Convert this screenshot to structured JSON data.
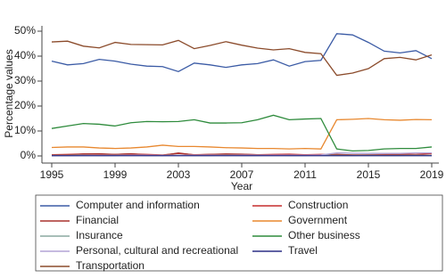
{
  "chart_data": {
    "type": "line",
    "x": [
      1995,
      1996,
      1997,
      1998,
      1999,
      2000,
      2001,
      2002,
      2003,
      2004,
      2005,
      2006,
      2007,
      2008,
      2009,
      2010,
      2011,
      2012,
      2013,
      2014,
      2015,
      2016,
      2017,
      2018,
      2019
    ],
    "xlabel": "Year",
    "ylabel": "Percentage values",
    "xlim": [
      1995,
      2019
    ],
    "xticks": [
      1995,
      1999,
      2003,
      2007,
      2011,
      2015,
      2019
    ],
    "ylim": [
      0,
      50
    ],
    "yticks": [
      {
        "value": 0,
        "label": "0%"
      },
      {
        "value": 10,
        "label": "10%"
      },
      {
        "value": 20,
        "label": "20%"
      },
      {
        "value": 30,
        "label": "30%"
      },
      {
        "value": 40,
        "label": "40%"
      },
      {
        "value": 50,
        "label": "50%"
      }
    ],
    "series": [
      {
        "name": "Computer and information",
        "color": "#3b5ba5",
        "values": [
          38,
          36.5,
          37,
          38.7,
          38,
          36.8,
          36,
          35.8,
          33.8,
          37.2,
          36.5,
          35.5,
          36.5,
          37,
          38.5,
          36,
          37.8,
          38.3,
          49,
          48.5,
          45.5,
          42,
          41.3,
          42.2,
          39
        ]
      },
      {
        "name": "Construction",
        "color": "#c62d2d",
        "values": [
          0.5,
          0.6,
          0.8,
          0.7,
          0.6,
          0.8,
          0.6,
          0.4,
          1,
          0.5,
          0.6,
          0.7,
          0.6,
          0.5,
          0.6,
          0.7,
          0.5,
          0.6,
          0.5,
          0.4,
          0.5,
          0.6,
          0.7,
          0.6,
          1
        ]
      },
      {
        "name": "Financial",
        "color": "#a8322d",
        "values": [
          0.2,
          0.3,
          0.8,
          0.9,
          0.6,
          0.9,
          0.4,
          0.2,
          1.2,
          0.4,
          0.6,
          0.8,
          0.7,
          0.5,
          0.3,
          0.4,
          0.3,
          0.3,
          0.6,
          0.4,
          0.3,
          0.3,
          0.4,
          0.3,
          0.3
        ]
      },
      {
        "name": "Government",
        "color": "#e8882f",
        "values": [
          3.4,
          3.6,
          3.6,
          3.2,
          3,
          3.2,
          3.6,
          4.3,
          3.8,
          3.8,
          3.6,
          3.3,
          3.2,
          3,
          3,
          2.8,
          3,
          2.8,
          14.5,
          14.7,
          15,
          14.5,
          14.3,
          14.6,
          14.5
        ]
      },
      {
        "name": "Insurance",
        "color": "#8aa8a0",
        "values": [
          0.2,
          0.2,
          0.3,
          0.2,
          0.2,
          0.3,
          0.2,
          0.2,
          0.3,
          0.2,
          0.2,
          0.3,
          0.2,
          0.2,
          0.3,
          0.2,
          0.2,
          0.3,
          0.2,
          0.2,
          0.3,
          0.2,
          0.2,
          0.3,
          0.2
        ]
      },
      {
        "name": "Other business",
        "color": "#2e8b3c",
        "values": [
          11,
          12,
          13,
          12.7,
          12,
          13.3,
          13.8,
          13.7,
          13.8,
          14.5,
          13.2,
          13.2,
          13.3,
          14.5,
          16.3,
          14.5,
          14.8,
          15,
          2.8,
          2,
          2.2,
          2.8,
          3,
          3,
          3.6
        ]
      },
      {
        "name": "Personal, cultural and recreational",
        "color": "#b3a3d6",
        "values": [
          0.1,
          0.1,
          0.2,
          0.2,
          0.2,
          0.3,
          0.3,
          0.2,
          0.2,
          0.3,
          0.3,
          0.2,
          0.3,
          0.3,
          0.3,
          0.3,
          0.3,
          0.4,
          1.2,
          1.1,
          1,
          1,
          1,
          1.2,
          1.2
        ]
      },
      {
        "name": "Travel",
        "color": "#2b2f86",
        "values": [
          0.1,
          0.1,
          0.1,
          0.1,
          0.1,
          0.1,
          0.1,
          0.1,
          0.1,
          0.1,
          0.1,
          0.1,
          0.1,
          0.1,
          0.1,
          0.1,
          0.1,
          0.1,
          0.1,
          0.1,
          0.1,
          0.1,
          0.1,
          0.1,
          0.1
        ]
      },
      {
        "name": "Transportation",
        "color": "#8b4b2b",
        "values": [
          45.7,
          46,
          44,
          43.3,
          45.5,
          44.7,
          44.6,
          44.5,
          46.3,
          43,
          44.3,
          45.8,
          44.4,
          43.2,
          42.5,
          43,
          41.5,
          41,
          32.3,
          33.2,
          35,
          39,
          39.5,
          38.5,
          40.5
        ]
      }
    ]
  }
}
